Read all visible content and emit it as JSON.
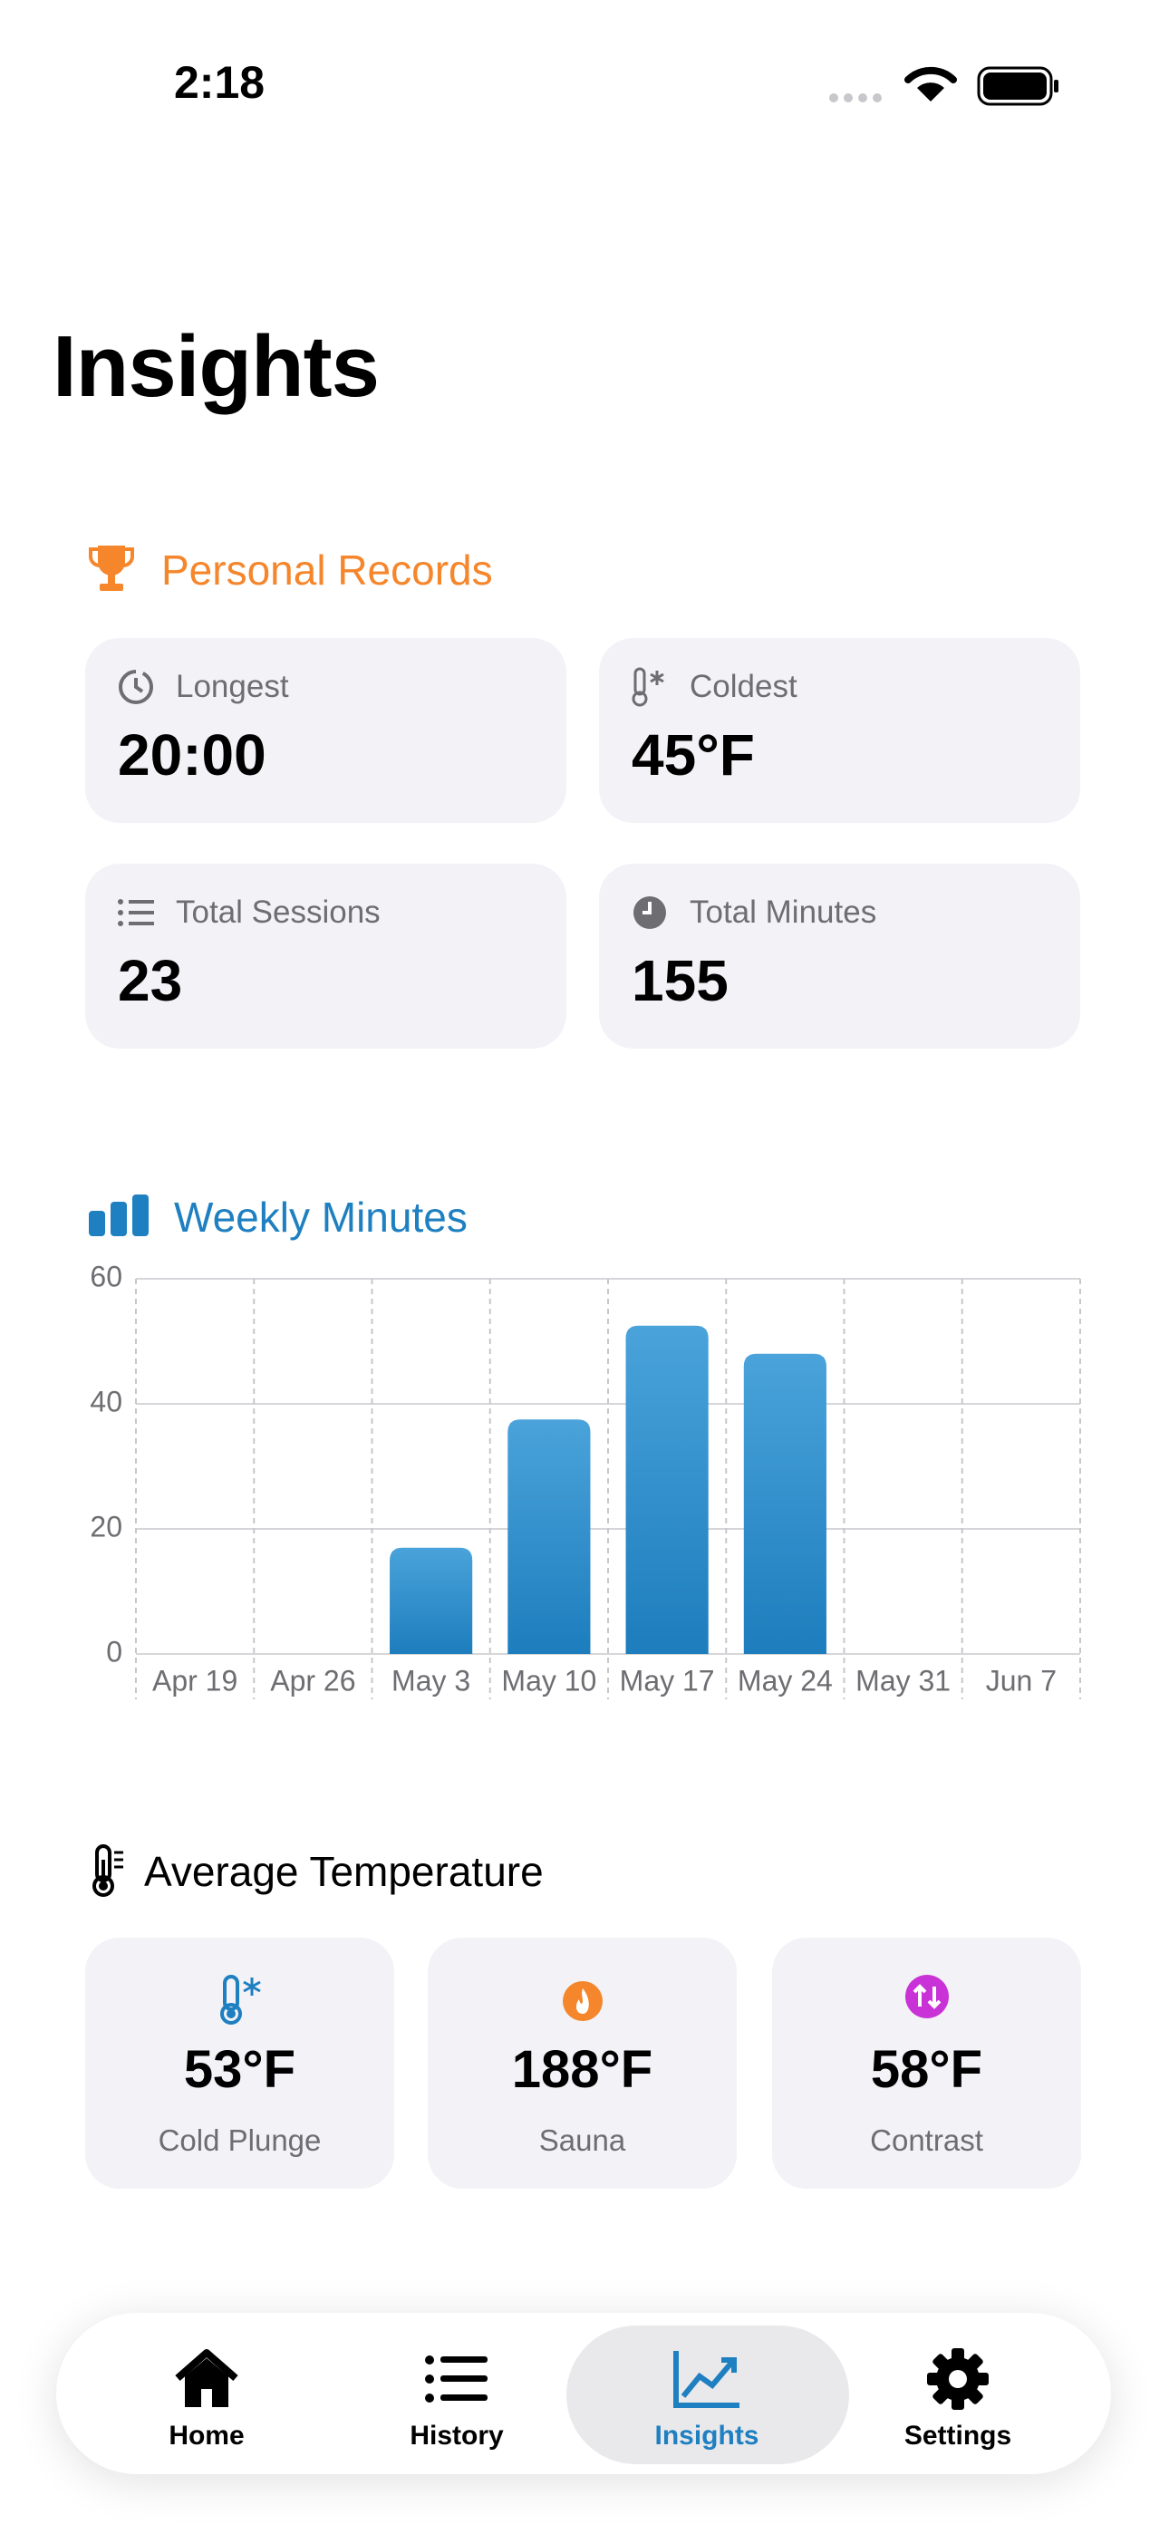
{
  "status_bar": {
    "time": "2:18"
  },
  "header": {
    "title": "Insights"
  },
  "personal_records": {
    "title": "Personal Records",
    "items": [
      {
        "label": "Longest",
        "value": "20:00"
      },
      {
        "label": "Coldest",
        "value": "45°F"
      },
      {
        "label": "Total Sessions",
        "value": "23"
      },
      {
        "label": "Total Minutes",
        "value": "155"
      }
    ]
  },
  "chart_data": {
    "type": "bar",
    "title": "Weekly Minutes",
    "categories": [
      "Apr 19",
      "Apr 26",
      "May 3",
      "May 10",
      "May 17",
      "May 24",
      "May 31",
      "Jun 7"
    ],
    "values": [
      0,
      0,
      17,
      37.5,
      52.5,
      48,
      0,
      0
    ],
    "color": "#2a8ccc",
    "ylim": [
      0,
      60
    ],
    "yticks": [
      0,
      20,
      40,
      60
    ],
    "grid": true
  },
  "average_temperature": {
    "title": "Average Temperature",
    "items": [
      {
        "value": "53°F",
        "label": "Cold Plunge"
      },
      {
        "value": "188°F",
        "label": "Sauna"
      },
      {
        "value": "58°F",
        "label": "Contrast"
      }
    ]
  },
  "tab_bar": {
    "tabs": [
      "Home",
      "History",
      "Insights",
      "Settings"
    ],
    "selected": "Insights"
  }
}
